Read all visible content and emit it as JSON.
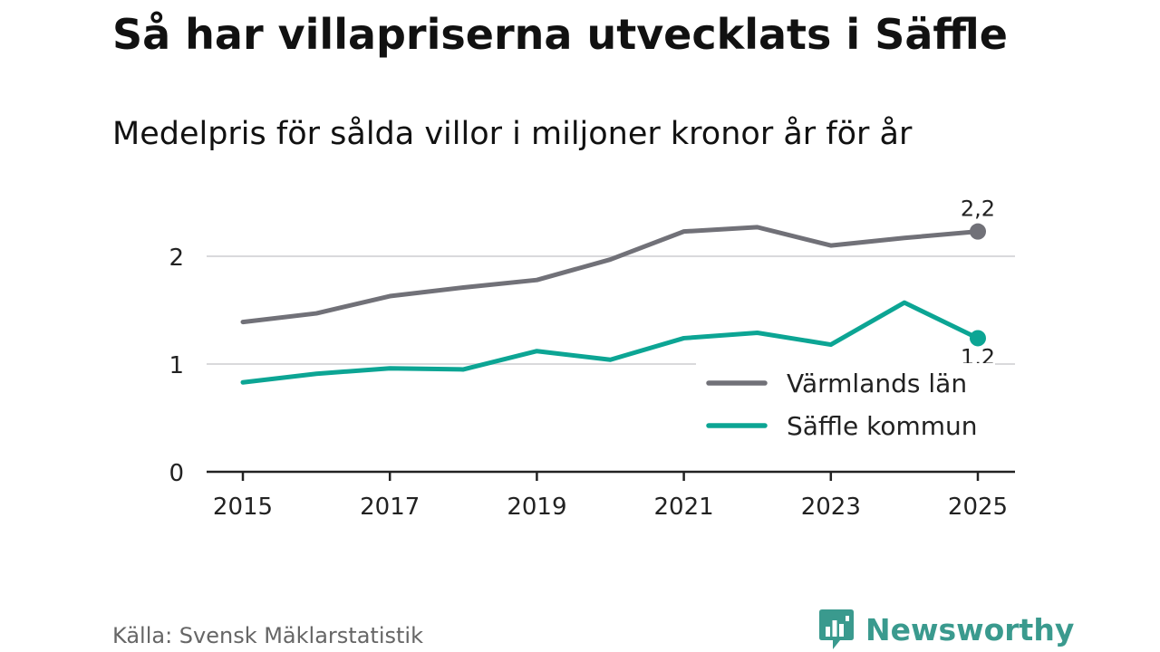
{
  "title": "Så har villapriserna utvecklats i Säffle",
  "subtitle": "Medelpris för sålda villor i miljoner kronor år för år",
  "source": "Källa: Svensk Mäklarstatistik",
  "brand": {
    "name": "Newsworthy",
    "icon": "newsworthy-chart-bubble-icon",
    "color": "#3a9a8e"
  },
  "chart_data": {
    "type": "line",
    "title": "Så har villapriserna utvecklats i Säffle",
    "subtitle": "Medelpris för sålda villor i miljoner kronor år för år",
    "xlabel": "",
    "ylabel": "",
    "x": [
      2015,
      2016,
      2017,
      2018,
      2019,
      2020,
      2021,
      2022,
      2023,
      2024,
      2025
    ],
    "x_ticks": [
      "2015",
      "2017",
      "2019",
      "2021",
      "2023",
      "2025"
    ],
    "y_ticks": [
      "0",
      "1",
      "2"
    ],
    "ylim": [
      0,
      2.55
    ],
    "grid": true,
    "legend_position": "bottom-right",
    "series": [
      {
        "name": "Värmlands län",
        "color": "#717178",
        "values": [
          1.39,
          1.47,
          1.63,
          1.71,
          1.78,
          1.97,
          2.23,
          2.27,
          2.1,
          2.17,
          2.23
        ],
        "end_label": "2,2"
      },
      {
        "name": "Säffle kommun",
        "color": "#0ca594",
        "values": [
          0.83,
          0.91,
          0.96,
          0.95,
          1.12,
          1.04,
          1.24,
          1.29,
          1.18,
          1.57,
          1.24
        ],
        "end_label": "1,2"
      }
    ]
  }
}
